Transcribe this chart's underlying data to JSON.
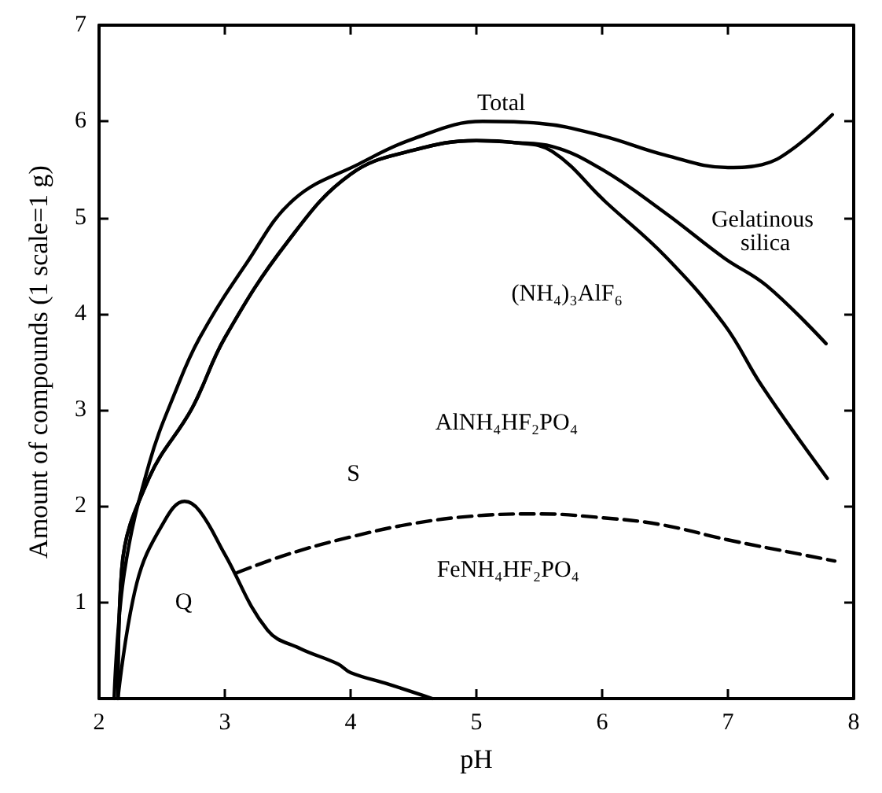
{
  "chart_data": {
    "type": "line",
    "xlabel": "pH",
    "ylabel": "Amount of compounds (1 scale=1 g)",
    "xlim": [
      2,
      8
    ],
    "ylim": [
      0,
      7
    ],
    "xticks": [
      2,
      3,
      4,
      5,
      6,
      7,
      8
    ],
    "yticks": [
      {
        "value": 0,
        "label": null
      },
      1,
      2,
      3,
      4,
      5,
      6,
      7
    ],
    "grid": false,
    "marker": "none",
    "line_style": "solid",
    "series": [
      {
        "color": "#000000",
        "x": [
          2.12,
          2.2,
          2.4,
          2.61,
          2.8,
          3.17,
          3.55,
          4.07,
          4.5,
          5.05,
          5.5,
          6,
          6.5,
          7,
          7.27,
          7.5,
          7.83
        ],
        "values": [
          0,
          1.3,
          2.45,
          3.2,
          3.75,
          4.52,
          5.19,
          5.56,
          5.82,
          6.0,
          5.98,
          5.85,
          5.65,
          5.52,
          5.55,
          5.7,
          6.07
        ]
      },
      {
        "color": "#000000",
        "x": [
          2.15,
          2.18,
          2.4,
          2.74,
          3,
          3.5,
          4,
          4.5,
          5,
          5.3,
          5.6,
          6,
          6.5,
          6.97,
          7.31,
          7.78
        ],
        "values": [
          0,
          1.34,
          2.3,
          3.02,
          3.75,
          4.75,
          5.45,
          5.7,
          5.8,
          5.78,
          5.74,
          5.5,
          5.05,
          4.58,
          4.29,
          3.69
        ]
      },
      {
        "color": "#000000",
        "x": [
          2.15,
          2.18,
          2.4,
          2.74,
          3,
          3.5,
          4,
          4.5,
          5,
          5.3,
          5.6,
          6.03,
          6.5,
          6.97,
          7.27,
          7.79
        ],
        "values": [
          0,
          1.34,
          2.3,
          3.02,
          3.75,
          4.75,
          5.45,
          5.7,
          5.8,
          5.78,
          5.69,
          5.16,
          4.6,
          3.89,
          3.25,
          2.29
        ]
      },
      {
        "color": "#000000",
        "x": [
          2.15,
          2.3,
          2.5,
          2.68,
          2.8,
          3,
          3.34,
          3.6,
          3.9,
          4,
          4.3,
          4.65
        ],
        "values": [
          0,
          1.2,
          1.8,
          2.05,
          1.95,
          1.5,
          0.71,
          0.52,
          0.36,
          0.27,
          0.15,
          0
        ]
      },
      {
        "color": "#000000",
        "line_style": "dashed",
        "x": [
          3.1,
          3.5,
          4,
          4.5,
          5,
          5.5,
          6,
          6.46,
          7,
          7.5,
          7.85
        ],
        "values": [
          1.31,
          1.5,
          1.68,
          1.82,
          1.9,
          1.92,
          1.88,
          1.81,
          1.65,
          1.52,
          1.43
        ]
      }
    ],
    "annotations": [
      "Total",
      "Gelatinous silica",
      "(NH₄)₃AlF₆",
      "AlNH₄HF₂PO₄",
      "FeNH₄HF₂PO₄",
      "S",
      "Q"
    ]
  }
}
